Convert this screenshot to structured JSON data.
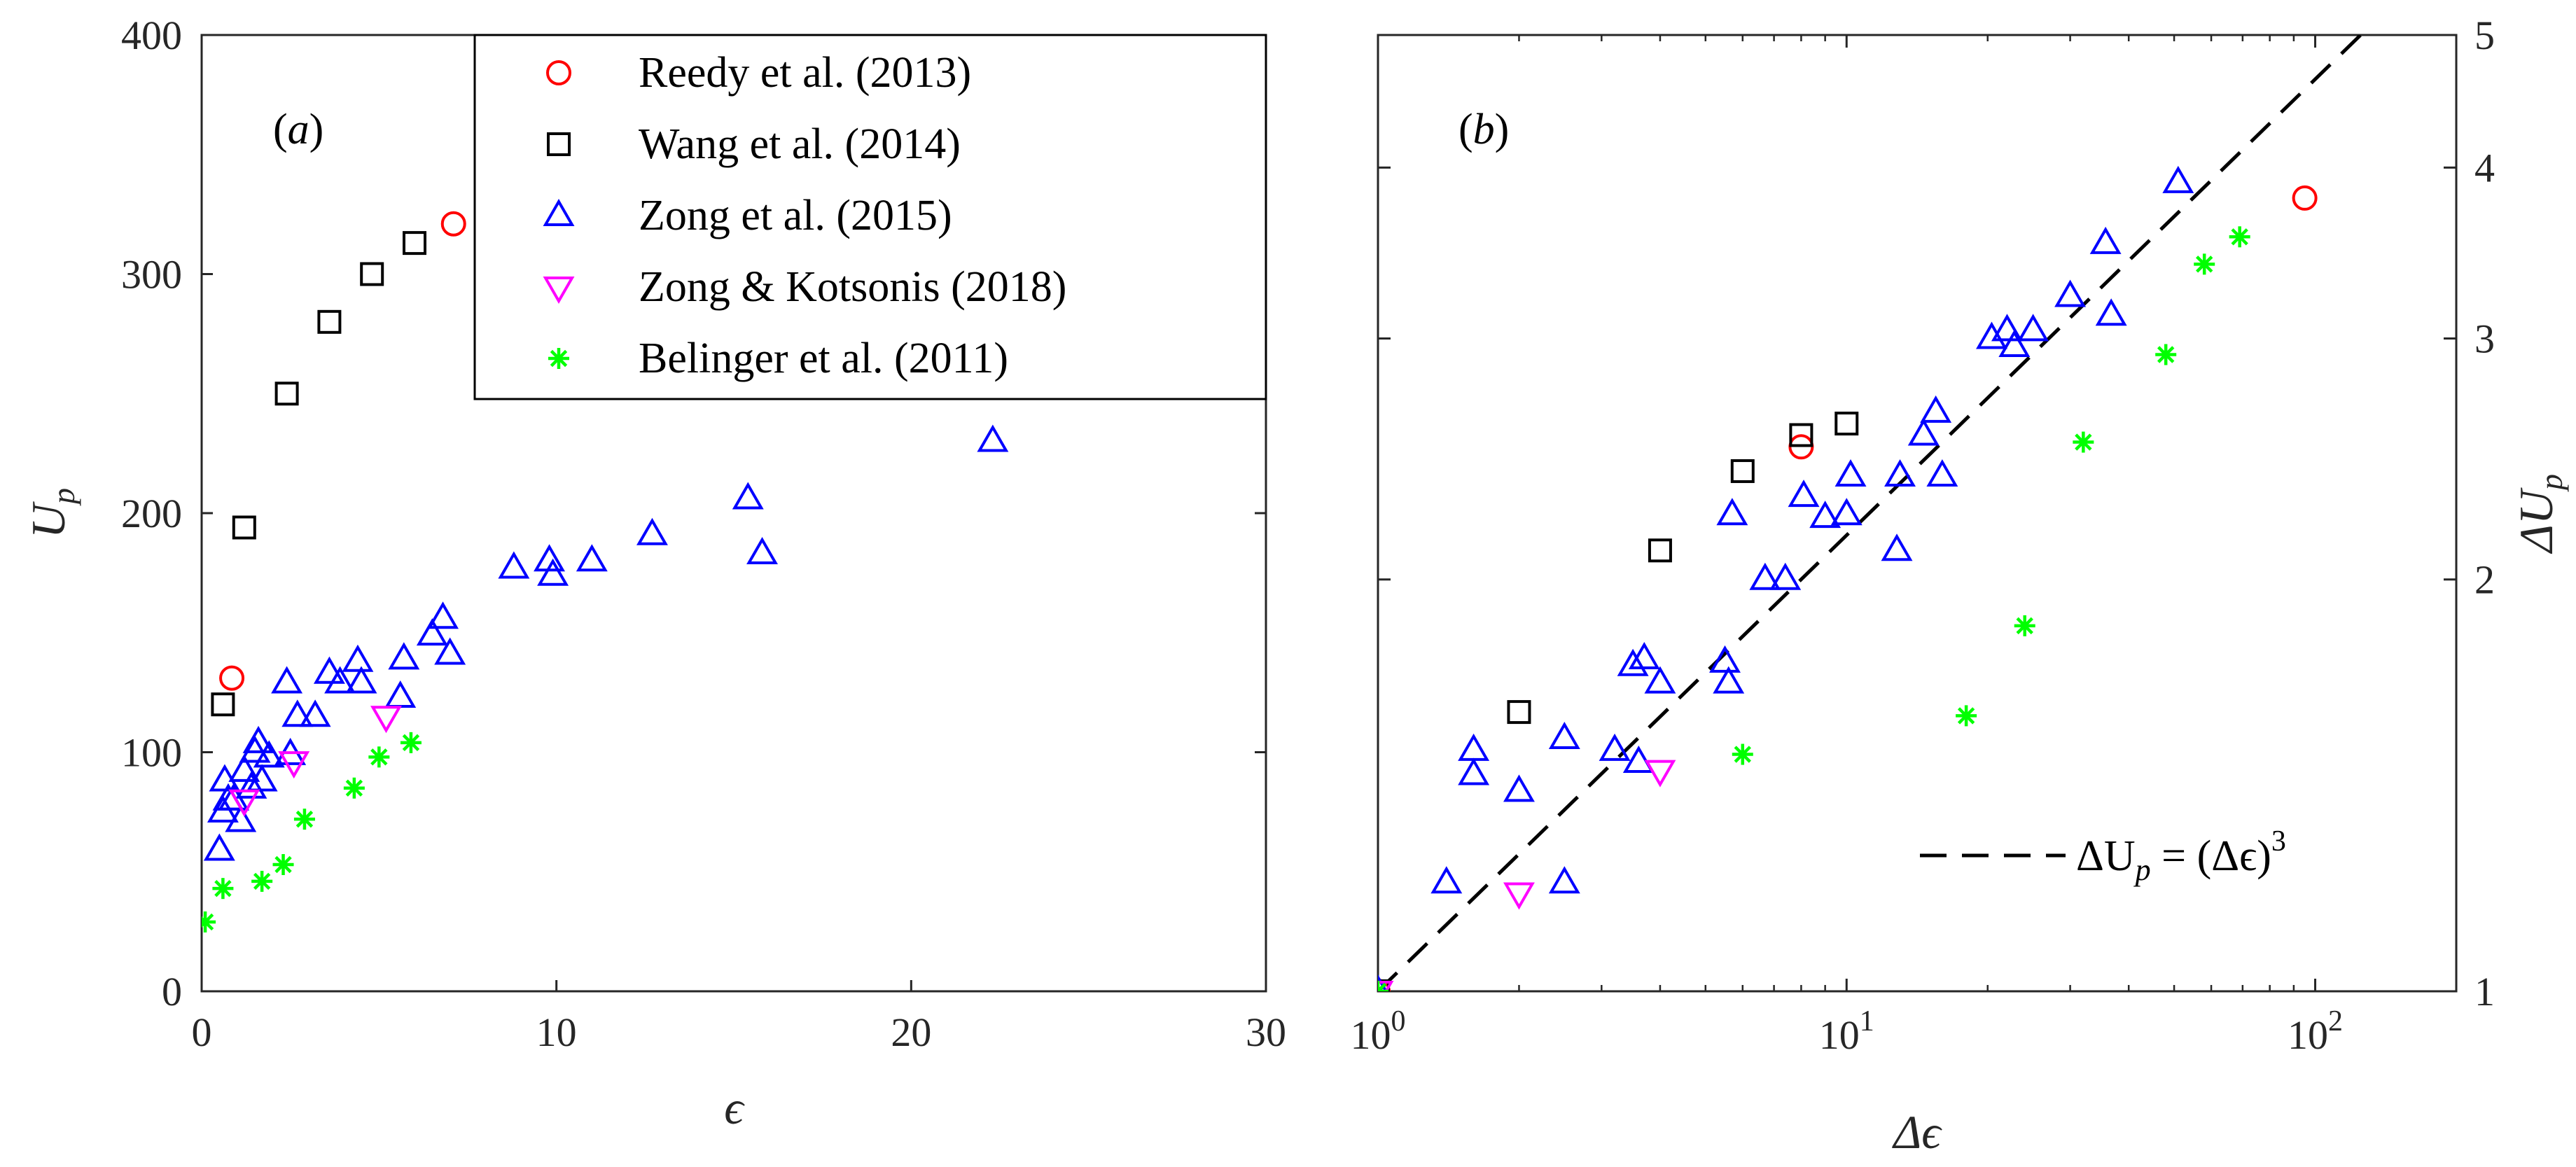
{
  "chart_data": [
    {
      "type": "scatter",
      "panel_label": "(a)",
      "xlabel": "ϵ",
      "ylabel": "U",
      "ylabel_sub": "p",
      "xlim": [
        0,
        30
      ],
      "ylim": [
        0,
        400
      ],
      "xticks": [
        0,
        10,
        20,
        30
      ],
      "xtick_labels": [
        "0",
        "10",
        "20",
        "30"
      ],
      "yticks": [
        0,
        100,
        200,
        300,
        400
      ],
      "ytick_labels": [
        "0",
        "100",
        "200",
        "300",
        "400"
      ],
      "legend": {
        "position": "top-center",
        "entries": [
          "Reedy et al. (2013)",
          "Wang et al. (2014)",
          "Zong et al. (2015)",
          "Zong & Kotsonis (2018)",
          "Belinger et al. (2011)"
        ]
      },
      "series": [
        {
          "name": "Reedy et al. (2013)",
          "marker": "circle",
          "color": "#ff0000",
          "x": [
            0.85,
            7.1
          ],
          "y": [
            131,
            321
          ]
        },
        {
          "name": "Wang et al. (2014)",
          "marker": "square",
          "color": "#000000",
          "x": [
            0.6,
            1.2,
            2.4,
            3.6,
            4.8,
            6.0
          ],
          "y": [
            120,
            194,
            250,
            280,
            300,
            313
          ]
        },
        {
          "name": "Zong et al. (2015)",
          "marker": "triangle-up",
          "color": "#0000ff",
          "x": [
            0.5,
            0.6,
            0.65,
            0.75,
            0.9,
            1.1,
            1.2,
            1.4,
            1.5,
            1.6,
            1.7,
            1.9,
            2.4,
            2.5,
            2.7,
            3.2,
            3.6,
            3.9,
            4.4,
            4.5,
            5.6,
            5.7,
            6.5,
            6.8,
            7.0,
            8.8,
            9.8,
            9.9,
            11.0,
            12.7,
            15.4,
            15.8,
            22.3
          ],
          "y": [
            59,
            75,
            88,
            80,
            80,
            71,
            92,
            85,
            100,
            104,
            88,
            98,
            129,
            99,
            115,
            115,
            133,
            129,
            138,
            129,
            123,
            139,
            149,
            156,
            141,
            177,
            180,
            174,
            180,
            191,
            206,
            183,
            230
          ]
        },
        {
          "name": "Zong & Kotsonis (2018)",
          "marker": "triangle-down",
          "color": "#ff00ff",
          "x": [
            1.2,
            2.6,
            5.2
          ],
          "y": [
            80,
            96,
            115
          ]
        },
        {
          "name": "Belinger et al. (2011)",
          "marker": "asterisk",
          "color": "#00ff00",
          "x": [
            0.1,
            0.6,
            1.7,
            2.3,
            2.9,
            4.3,
            5.0,
            5.9
          ],
          "y": [
            29,
            43,
            46,
            53,
            72,
            85,
            98,
            104
          ]
        }
      ]
    },
    {
      "type": "scatter",
      "scale": "log-log",
      "panel_label": "(b)",
      "xlabel": "Δϵ",
      "ylabel": "ΔU",
      "ylabel_sub": "p",
      "xlim": [
        1,
        200
      ],
      "ylim": [
        1,
        5
      ],
      "xticks": [
        1,
        10,
        100
      ],
      "xtick_bases": [
        "10",
        "10",
        "10"
      ],
      "xtick_exps": [
        "0",
        "1",
        "2"
      ],
      "yticks": [
        1,
        2,
        3,
        4,
        5
      ],
      "ytick_labels": [
        "1",
        "2",
        "3",
        "4",
        "5"
      ],
      "annotation": {
        "prefix": "ΔU",
        "sub": "p",
        "rest": " = (Δϵ)",
        "sup": "3",
        "position": "bottom-right"
      },
      "reference_line": {
        "name": "ΔU_p = (Δϵ)^3",
        "style": "dashed",
        "color": "#000000",
        "x": [
          1,
          130
        ]
      },
      "series": [
        {
          "name": "Reedy et al. (2013)",
          "marker": "circle",
          "color": "#ff0000",
          "x": [
            1,
            8,
            95
          ],
          "y": [
            1,
            2.5,
            3.8
          ]
        },
        {
          "name": "Wang et al. (2014)",
          "marker": "square",
          "color": "#000000",
          "x": [
            1,
            2,
            4,
            6,
            8,
            10
          ],
          "y": [
            1,
            1.6,
            2.1,
            2.4,
            2.55,
            2.6
          ]
        },
        {
          "name": "Zong et al. (2015)",
          "marker": "triangle-up",
          "color": "#0000ff",
          "x": [
            1,
            1.4,
            1.6,
            1.6,
            2.0,
            2.5,
            2.5,
            3.2,
            3.5,
            3.6,
            3.7,
            4.0,
            5.5,
            5.6,
            5.7,
            6.7,
            7.4,
            8.1,
            9.0,
            10.0,
            10.2,
            12.8,
            13.0,
            14.6,
            15.5,
            16.0,
            20.4,
            22.0,
            22.8,
            25.0,
            30.0,
            35.7,
            36.7,
            51.0
          ],
          "y": [
            1,
            1.2,
            1.44,
            1.5,
            1.4,
            1.53,
            1.2,
            1.5,
            1.73,
            1.47,
            1.75,
            1.68,
            1.74,
            1.68,
            2.23,
            2.0,
            2.0,
            2.3,
            2.22,
            2.23,
            2.38,
            2.1,
            2.38,
            2.55,
            2.65,
            2.38,
            3.0,
            3.04,
            2.96,
            3.04,
            3.22,
            3.52,
            3.12,
            3.9
          ]
        },
        {
          "name": "Zong & Kotsonis (2018)",
          "marker": "triangle-down",
          "color": "#ff00ff",
          "x": [
            1,
            2.0,
            4.0
          ],
          "y": [
            1,
            1.18,
            1.45
          ]
        },
        {
          "name": "Belinger et al. (2011)",
          "marker": "asterisk",
          "color": "#00ff00",
          "x": [
            1,
            6.0,
            18.0,
            24.0,
            32.0,
            48.0,
            58.0,
            69.0
          ],
          "y": [
            1,
            1.49,
            1.59,
            1.85,
            2.52,
            2.92,
            3.4,
            3.56
          ]
        }
      ]
    }
  ]
}
